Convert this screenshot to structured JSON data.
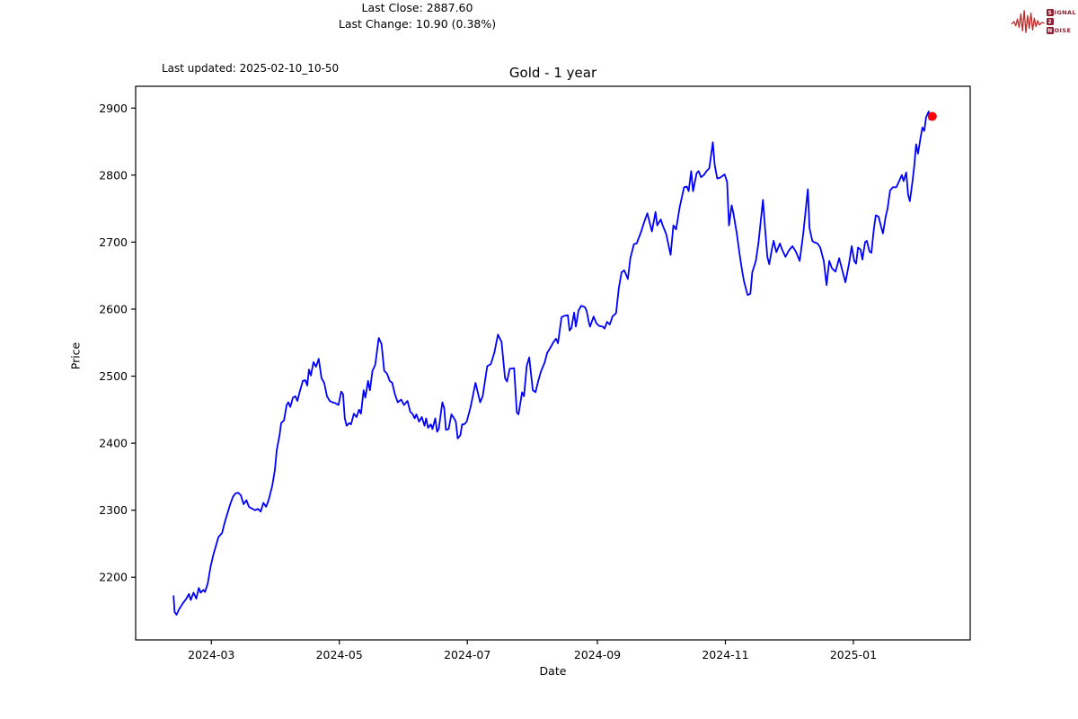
{
  "header": {
    "last_updated": "Last updated: 2025-02-10_10-50",
    "title": "Gold - 1 year",
    "annotation_line1": "Last Close: 2887.60",
    "annotation_line2": "Last Change: 10.90 (0.38%)"
  },
  "logo": {
    "row1_boxed": "S",
    "row1_rest": "IGNAL",
    "row2_boxed": "2",
    "row2_rest": "",
    "row3_boxed": "N",
    "row3_rest": "OISE",
    "waveform_color": "#c42b2b",
    "text_color": "#8c1d30"
  },
  "chart_data": {
    "type": "line",
    "title": "Gold - 1 year",
    "xlabel": "Date",
    "ylabel": "Price",
    "line_color": "#0000ff",
    "marker_color": "#ff0000",
    "axis_color": "#000000",
    "grid": false,
    "x_unit": "days since 2024-02-12 (x axis spans 2024-02-12 to 2025-02-10)",
    "x_ticks": [
      {
        "label": "2024-03",
        "day": 18
      },
      {
        "label": "2024-05",
        "day": 79
      },
      {
        "label": "2024-07",
        "day": 140
      },
      {
        "label": "2024-09",
        "day": 202
      },
      {
        "label": "2024-11",
        "day": 263
      },
      {
        "label": "2025-01",
        "day": 324
      }
    ],
    "y_ticks": [
      2200,
      2300,
      2400,
      2500,
      2600,
      2700,
      2800,
      2900
    ],
    "ylim_approx": [
      2106,
      2933
    ],
    "last_close": 2887.6,
    "last_change": "10.90 (0.38%)",
    "x": [
      0,
      0.5,
      1.4,
      2.6,
      4.4,
      6.1,
      7.3,
      8.2,
      9.5,
      10.8,
      12,
      12.9,
      14.2,
      15,
      16.3,
      17.6,
      18.9,
      20.1,
      21.4,
      23.1,
      24.4,
      25.7,
      27,
      28.3,
      29.5,
      30.8,
      32.1,
      33.4,
      34.7,
      35.9,
      37.6,
      38.9,
      40.2,
      41.5,
      42.8,
      44.1,
      45.3,
      47,
      48.3,
      49.2,
      50.5,
      51.3,
      52.6,
      53.9,
      54.7,
      55.6,
      56.9,
      58.1,
      59,
      60.3,
      61.6,
      62.8,
      63.7,
      64.5,
      65.4,
      66.7,
      67.9,
      69.2,
      70.5,
      71.8,
      73.1,
      74.4,
      75.6,
      76.9,
      78.6,
      79.9,
      80.8,
      81.6,
      82.5,
      83.7,
      84.6,
      85.9,
      87.2,
      88.4,
      89.3,
      90.6,
      91.4,
      92.7,
      93.6,
      94.8,
      96.1,
      97.8,
      99.1,
      100.4,
      101.7,
      103,
      104.2,
      105.5,
      106.8,
      108.5,
      109.8,
      111.5,
      112.8,
      114,
      114.9,
      115.7,
      117,
      118.3,
      119.6,
      120.4,
      121.3,
      122.6,
      123.4,
      124.7,
      125.6,
      126.4,
      128.1,
      129,
      129.8,
      131.1,
      132.4,
      133.7,
      134.5,
      135.4,
      136.7,
      137.5,
      138.4,
      139.7,
      141.4,
      142.6,
      143.9,
      146.1,
      147.3,
      149.5,
      151.2,
      152.9,
      154.6,
      156.3,
      158,
      158.9,
      160.2,
      162.3,
      163.6,
      164.4,
      166.1,
      167,
      168.3,
      169.5,
      171.2,
      172.5,
      173.8,
      175.1,
      176.8,
      178.1,
      179.3,
      181.1,
      182.3,
      183.2,
      184.9,
      186.2,
      187.9,
      188.7,
      189.6,
      190.9,
      191.7,
      193,
      194.3,
      196,
      196.8,
      198.1,
      198.5,
      200.2,
      201.5,
      202.8,
      204.5,
      205.4,
      206.6,
      207.9,
      209.2,
      210.9,
      212.2,
      213.5,
      214.8,
      216.5,
      217.7,
      219.4,
      220.7,
      222.9,
      224.1,
      225.8,
      228,
      229.7,
      230.5,
      232.2,
      233.1,
      234.8,
      236.9,
      238.2,
      239.5,
      241.2,
      243.3,
      244.6,
      245.5,
      246.7,
      247.6,
      249.3,
      250.2,
      251.4,
      252.7,
      254,
      255.3,
      256.1,
      257,
      257.9,
      259.1,
      260.4,
      261.7,
      262.6,
      263.8,
      264.7,
      266,
      266.8,
      268.5,
      269.8,
      271.1,
      271.9,
      273.6,
      274.9,
      275.8,
      277.5,
      278.8,
      280.9,
      281.8,
      283,
      283.9,
      285.2,
      286,
      287.3,
      289,
      289.9,
      291.6,
      293.3,
      295,
      296.7,
      298.4,
      300.1,
      302.3,
      303.1,
      304.4,
      305.2,
      306.9,
      308.2,
      309.1,
      309.9,
      311.2,
      312.5,
      313.8,
      315.5,
      317.2,
      318.9,
      320.2,
      321.9,
      323.2,
      324.4,
      325.3,
      326.2,
      327.4,
      328.3,
      329.6,
      330.4,
      331.7,
      332.6,
      333.8,
      334.7,
      336,
      337.3,
      338.1,
      339.4,
      340.3,
      341.5,
      342.8,
      344.5,
      345.8,
      347.1,
      347.9,
      349.2,
      350.1,
      350.9,
      352.2,
      353.1,
      353.9,
      354.8,
      356.1,
      356.9,
      357.8,
      358.6,
      359.9,
      360.3,
      361.6
    ],
    "values": [
      2172,
      2148,
      2144,
      2152,
      2161,
      2168,
      2175,
      2166,
      2177,
      2168,
      2184,
      2177,
      2181,
      2178,
      2191,
      2215,
      2233,
      2246,
      2260,
      2266,
      2282,
      2296,
      2309,
      2320,
      2325,
      2326,
      2322,
      2309,
      2315,
      2305,
      2302,
      2300,
      2302,
      2298,
      2311,
      2305,
      2315,
      2336,
      2360,
      2390,
      2412,
      2430,
      2434,
      2457,
      2461,
      2454,
      2468,
      2470,
      2463,
      2479,
      2493,
      2494,
      2486,
      2510,
      2501,
      2521,
      2514,
      2526,
      2497,
      2490,
      2470,
      2463,
      2461,
      2460,
      2457,
      2477,
      2473,
      2437,
      2426,
      2430,
      2428,
      2444,
      2439,
      2450,
      2444,
      2479,
      2468,
      2493,
      2479,
      2508,
      2517,
      2557,
      2548,
      2508,
      2504,
      2493,
      2490,
      2473,
      2461,
      2465,
      2457,
      2463,
      2447,
      2443,
      2437,
      2443,
      2432,
      2439,
      2426,
      2437,
      2423,
      2428,
      2421,
      2437,
      2417,
      2421,
      2461,
      2452,
      2420,
      2421,
      2443,
      2437,
      2432,
      2407,
      2412,
      2428,
      2428,
      2432,
      2452,
      2470,
      2490,
      2461,
      2470,
      2515,
      2518,
      2535,
      2562,
      2551,
      2497,
      2492,
      2511,
      2512,
      2446,
      2443,
      2476,
      2470,
      2515,
      2528,
      2479,
      2476,
      2493,
      2507,
      2520,
      2535,
      2541,
      2551,
      2556,
      2549,
      2588,
      2590,
      2591,
      2568,
      2572,
      2595,
      2574,
      2598,
      2605,
      2603,
      2598,
      2578,
      2574,
      2589,
      2579,
      2575,
      2574,
      2571,
      2581,
      2577,
      2589,
      2594,
      2631,
      2655,
      2658,
      2645,
      2676,
      2697,
      2698,
      2716,
      2728,
      2743,
      2716,
      2745,
      2725,
      2734,
      2725,
      2712,
      2681,
      2725,
      2719,
      2752,
      2782,
      2783,
      2776,
      2806,
      2776,
      2803,
      2806,
      2797,
      2800,
      2806,
      2810,
      2828,
      2849,
      2815,
      2795,
      2796,
      2799,
      2801,
      2790,
      2725,
      2755,
      2743,
      2712,
      2681,
      2655,
      2641,
      2621,
      2623,
      2655,
      2672,
      2700,
      2763,
      2725,
      2678,
      2667,
      2690,
      2702,
      2685,
      2698,
      2690,
      2678,
      2688,
      2694,
      2685,
      2672,
      2712,
      2779,
      2721,
      2702,
      2700,
      2698,
      2692,
      2681,
      2672,
      2636,
      2672,
      2661,
      2656,
      2676,
      2656,
      2640,
      2668,
      2694,
      2672,
      2668,
      2692,
      2689,
      2674,
      2700,
      2702,
      2686,
      2684,
      2720,
      2740,
      2738,
      2722,
      2713,
      2738,
      2750,
      2777,
      2782,
      2782,
      2791,
      2800,
      2791,
      2804,
      2771,
      2761,
      2791,
      2816,
      2846,
      2832,
      2857,
      2871,
      2866,
      2886,
      2895,
      2883,
      2887.6
    ]
  }
}
